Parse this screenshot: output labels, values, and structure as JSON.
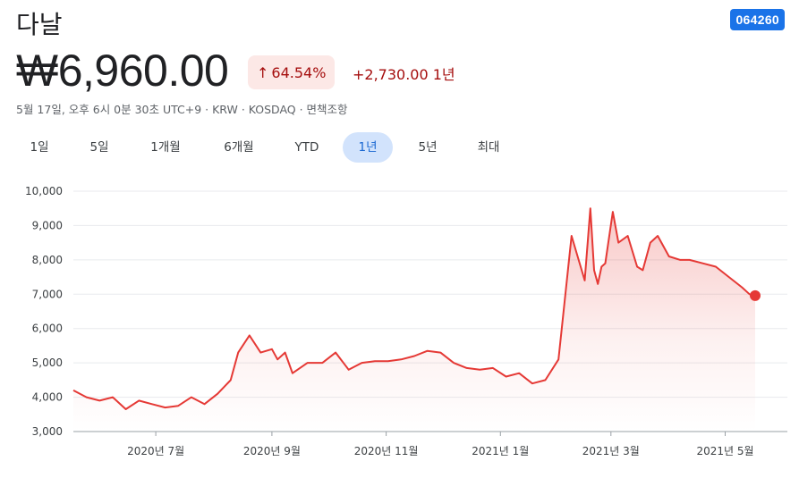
{
  "header": {
    "title": "다날",
    "ticker": "064260",
    "price": "₩6,960.00",
    "change_percent": "64.54%",
    "change_absolute": "+2,730.00",
    "change_period": "1년",
    "meta": "5월 17일, 오후 6시 0분 30초 UTC+9 · KRW · KOSDAQ · 면책조항"
  },
  "tabs": [
    {
      "label": "1일",
      "active": false
    },
    {
      "label": "5일",
      "active": false
    },
    {
      "label": "1개월",
      "active": false
    },
    {
      "label": "6개월",
      "active": false
    },
    {
      "label": "YTD",
      "active": false
    },
    {
      "label": "1년",
      "active": true
    },
    {
      "label": "5년",
      "active": false
    },
    {
      "label": "최대",
      "active": false
    }
  ],
  "colors": {
    "line": "#e53935",
    "badge_bg": "#fce8e6",
    "badge_text": "#a50e0e",
    "tab_active_bg": "#d2e3fc",
    "ticker_bg": "#1a73e8"
  },
  "chart_data": {
    "type": "line",
    "series": [
      {
        "x": [
          "2020-05-18",
          "2020-05-25",
          "2020-06-01",
          "2020-06-08",
          "2020-06-15",
          "2020-06-22",
          "2020-06-29",
          "2020-07-06",
          "2020-07-13",
          "2020-07-20",
          "2020-07-27",
          "2020-08-03",
          "2020-08-10",
          "2020-08-14",
          "2020-08-20",
          "2020-08-26",
          "2020-09-01",
          "2020-09-04",
          "2020-09-08",
          "2020-09-12",
          "2020-09-20",
          "2020-09-28",
          "2020-10-05",
          "2020-10-12",
          "2020-10-19",
          "2020-10-26",
          "2020-11-02",
          "2020-11-09",
          "2020-11-16",
          "2020-11-23",
          "2020-11-30",
          "2020-12-07",
          "2020-12-14",
          "2020-12-21",
          "2020-12-28",
          "2021-01-04",
          "2021-01-11",
          "2021-01-18",
          "2021-01-25",
          "2021-02-01",
          "2021-02-08",
          "2021-02-15",
          "2021-02-18",
          "2021-02-20",
          "2021-02-22",
          "2021-02-24",
          "2021-02-26",
          "2021-03-02",
          "2021-03-05",
          "2021-03-10",
          "2021-03-15",
          "2021-03-18",
          "2021-03-22",
          "2021-03-26",
          "2021-04-01",
          "2021-04-07",
          "2021-04-12",
          "2021-04-19",
          "2021-04-26",
          "2021-05-03",
          "2021-05-10",
          "2021-05-14",
          "2021-05-17"
        ],
        "values": [
          4200,
          4000,
          3900,
          4000,
          3650,
          3900,
          3800,
          3700,
          3750,
          4000,
          3800,
          4100,
          4500,
          5300,
          5800,
          5300,
          5400,
          5100,
          5300,
          4700,
          5000,
          5000,
          5300,
          4800,
          5000,
          5050,
          5050,
          5100,
          5200,
          5350,
          5300,
          5000,
          4850,
          4800,
          4850,
          4600,
          4700,
          4400,
          4500,
          5100,
          8700,
          7400,
          9500,
          7700,
          7300,
          7800,
          7900,
          9400,
          8500,
          8700,
          7800,
          7700,
          8500,
          8700,
          8100,
          8000,
          8000,
          7900,
          7800,
          7500,
          7200,
          7000,
          6960
        ],
        "last_point_marker": true
      }
    ],
    "yticks": [
      "3,000",
      "4,000",
      "5,000",
      "6,000",
      "7,000",
      "8,000",
      "9,000",
      "10,000"
    ],
    "ylim": [
      3000,
      10000
    ],
    "xticks": [
      {
        "date": "2020-07-01",
        "label": "2020년 7월"
      },
      {
        "date": "2020-09-01",
        "label": "2020년 9월"
      },
      {
        "date": "2020-11-01",
        "label": "2020년 11월"
      },
      {
        "date": "2021-01-01",
        "label": "2021년 1월"
      },
      {
        "date": "2021-03-01",
        "label": "2021년 3월"
      },
      {
        "date": "2021-05-01",
        "label": "2021년 5월"
      }
    ],
    "grid": true
  }
}
